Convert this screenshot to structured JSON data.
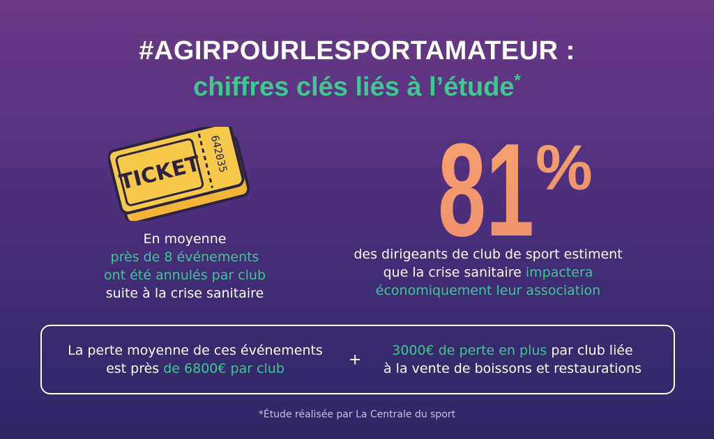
{
  "header": {
    "title": "#AGIRPOURLESPORTAMATEUR :",
    "subtitle": "chiffres clés liés à l’étude",
    "subtitle_mark": "*"
  },
  "ticket": {
    "label": "TICKET",
    "number": "642035"
  },
  "left_stat": {
    "line1": "En moyenne",
    "line2": "près de 8 événements",
    "line3": "ont été annulés par club",
    "line4": "suite à la crise sanitaire"
  },
  "big_stat": {
    "value": "81",
    "unit": "%"
  },
  "right_stat": {
    "line1": "des dirigeants de club de sport estiment",
    "line2_white": "que la crise sanitaire ",
    "line2_green": "impactera",
    "line3": "économiquement leur association"
  },
  "summary_box": {
    "left_line1": "La perte moyenne de ces événements",
    "left_line2_white": "est près ",
    "left_line2_green": "de 6800€ par club",
    "plus": "+",
    "right_line1_green": "3000€ de perte en plus",
    "right_line1_white": " par club liée",
    "right_line2": "à la vente de boissons et restaurations"
  },
  "footnote": "*Étude réalisée par La Centrale du sport",
  "colors": {
    "accent_green": "#3ec98e",
    "ticket_yellow": "#f8c84a",
    "stat_orange": "#f39a6e",
    "background_top": "#6a3a86",
    "background_bottom": "#2f2665"
  },
  "icons": [
    "ticket-icon"
  ]
}
